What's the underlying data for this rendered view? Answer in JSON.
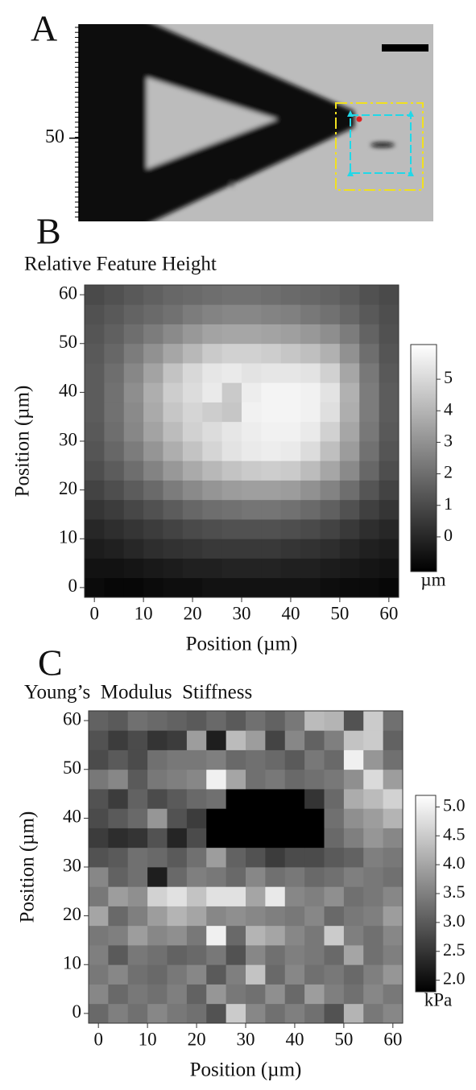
{
  "chart_data": [
    {
      "type": "image",
      "label": "A",
      "ylim": [
        23,
        87
      ],
      "yticks": [
        50
      ]
    },
    {
      "type": "heatmap",
      "label": "B",
      "title": "Relative Feature Height",
      "xlabel": "Position (µm)",
      "ylabel": "Position (µm)",
      "xlim": [
        -2,
        62
      ],
      "ylim": [
        -2,
        62
      ],
      "xticks": [
        0,
        10,
        20,
        30,
        40,
        50,
        60
      ],
      "yticks": [
        0,
        10,
        20,
        30,
        40,
        50,
        60
      ],
      "x": [
        0,
        4,
        8,
        12,
        16,
        20,
        24,
        28,
        32,
        36,
        40,
        44,
        48,
        52,
        56,
        60
      ],
      "y": [
        0,
        4,
        8,
        12,
        16,
        20,
        24,
        28,
        32,
        36,
        40,
        44,
        48,
        52,
        56,
        60
      ],
      "z": [
        [
          -0.8,
          -0.9,
          -0.9,
          -0.8,
          -0.7,
          -0.7,
          -0.6,
          -0.6,
          -0.6,
          -0.6,
          -0.6,
          -0.6,
          -0.7,
          -0.8,
          -0.8,
          -0.9
        ],
        [
          -0.6,
          -0.6,
          -0.5,
          -0.4,
          -0.3,
          -0.2,
          -0.2,
          -0.1,
          -0.1,
          -0.1,
          -0.2,
          -0.2,
          -0.3,
          -0.4,
          -0.5,
          -0.6
        ],
        [
          -0.3,
          -0.2,
          0.0,
          0.2,
          0.3,
          0.4,
          0.5,
          0.5,
          0.5,
          0.5,
          0.4,
          0.3,
          0.2,
          0.0,
          -0.2,
          -0.3
        ],
        [
          0.0,
          0.2,
          0.4,
          0.6,
          0.8,
          1.0,
          1.1,
          1.2,
          1.2,
          1.2,
          1.1,
          1.0,
          0.8,
          0.5,
          0.2,
          0.0
        ],
        [
          0.4,
          0.6,
          0.9,
          1.2,
          1.5,
          1.8,
          2.0,
          2.1,
          2.2,
          2.2,
          2.1,
          1.9,
          1.6,
          1.2,
          0.7,
          0.4
        ],
        [
          0.8,
          1.1,
          1.5,
          1.9,
          2.4,
          2.8,
          3.1,
          3.3,
          3.4,
          3.4,
          3.3,
          3.0,
          2.6,
          2.0,
          1.3,
          0.8
        ],
        [
          1.1,
          1.5,
          2.0,
          2.6,
          3.2,
          3.7,
          4.1,
          4.4,
          4.6,
          4.7,
          4.6,
          4.2,
          3.6,
          2.8,
          1.8,
          1.1
        ],
        [
          1.3,
          1.8,
          2.4,
          3.1,
          3.8,
          4.4,
          4.9,
          5.3,
          5.5,
          5.6,
          5.5,
          5.1,
          4.3,
          3.3,
          2.1,
          1.3
        ],
        [
          1.4,
          2.0,
          2.7,
          3.5,
          4.2,
          4.8,
          5.1,
          5.4,
          5.6,
          5.7,
          5.7,
          5.5,
          4.8,
          3.6,
          2.3,
          1.4
        ],
        [
          1.5,
          2.1,
          2.8,
          3.7,
          4.5,
          4.9,
          4.7,
          4.5,
          5.7,
          5.8,
          5.8,
          5.7,
          5.2,
          3.8,
          2.4,
          1.5
        ],
        [
          1.5,
          2.1,
          2.9,
          3.8,
          4.7,
          5.1,
          5.5,
          4.6,
          5.6,
          5.8,
          5.8,
          5.7,
          5.3,
          3.9,
          2.4,
          1.5
        ],
        [
          1.5,
          2.0,
          2.7,
          3.5,
          4.4,
          5.0,
          5.4,
          5.5,
          5.3,
          5.4,
          5.4,
          5.3,
          4.8,
          3.6,
          2.3,
          1.4
        ],
        [
          1.4,
          1.8,
          2.4,
          3.0,
          3.6,
          4.1,
          4.6,
          4.8,
          4.8,
          4.7,
          4.5,
          4.3,
          3.9,
          3.0,
          2.0,
          1.3
        ],
        [
          1.3,
          1.6,
          2.0,
          2.4,
          2.8,
          3.2,
          3.5,
          3.6,
          3.6,
          3.5,
          3.4,
          3.2,
          2.9,
          2.4,
          1.7,
          1.2
        ],
        [
          1.2,
          1.4,
          1.7,
          1.9,
          2.1,
          2.4,
          2.6,
          2.7,
          2.7,
          2.6,
          2.5,
          2.3,
          2.1,
          1.8,
          1.4,
          1.1
        ],
        [
          1.0,
          1.2,
          1.4,
          1.6,
          1.8,
          1.9,
          2.0,
          2.1,
          2.1,
          2.0,
          1.9,
          1.8,
          1.7,
          1.5,
          1.2,
          1.0
        ]
      ],
      "clim": [
        -1.1,
        6.1
      ],
      "cticks": [
        0,
        1,
        2,
        3,
        4,
        5
      ],
      "colorbar_label": "µm"
    },
    {
      "type": "heatmap",
      "label": "C",
      "title": "Young’s  Modulus  Stiffness",
      "xlabel": "Position (µm)",
      "ylabel": "Position (µm)",
      "xlim": [
        -2,
        62
      ],
      "ylim": [
        -2,
        62
      ],
      "xticks": [
        0,
        10,
        20,
        30,
        40,
        50,
        60
      ],
      "yticks": [
        0,
        10,
        20,
        30,
        40,
        50,
        60
      ],
      "x": [
        0,
        4,
        8,
        12,
        16,
        20,
        24,
        28,
        32,
        36,
        40,
        44,
        48,
        52,
        56,
        60
      ],
      "y": [
        0,
        4,
        8,
        12,
        16,
        20,
        24,
        28,
        32,
        36,
        40,
        44,
        48,
        52,
        56,
        60
      ],
      "z": [
        [
          3.2,
          3.5,
          3.3,
          3.6,
          3.4,
          3.3,
          2.9,
          4.5,
          3.6,
          3.3,
          3.5,
          3.3,
          2.9,
          4.2,
          3.4,
          3.6
        ],
        [
          3.6,
          3.2,
          3.4,
          3.3,
          3.5,
          3.1,
          3.8,
          3.4,
          3.3,
          3.7,
          3.2,
          3.9,
          3.5,
          3.3,
          3.6,
          3.4
        ],
        [
          3.4,
          3.6,
          3.3,
          3.2,
          3.4,
          3.6,
          3.0,
          3.5,
          4.4,
          3.2,
          3.6,
          3.3,
          3.4,
          3.2,
          3.5,
          3.8
        ],
        [
          3.5,
          3.0,
          3.4,
          3.3,
          3.1,
          3.2,
          3.4,
          2.9,
          3.6,
          3.3,
          3.5,
          3.4,
          3.2,
          4.0,
          3.3,
          3.5
        ],
        [
          3.4,
          3.5,
          3.9,
          3.6,
          3.7,
          3.4,
          5.0,
          3.2,
          4.2,
          4.0,
          3.6,
          3.4,
          4.5,
          3.5,
          3.3,
          3.6
        ],
        [
          4.0,
          3.2,
          3.5,
          3.9,
          4.2,
          4.0,
          3.6,
          3.7,
          3.6,
          3.5,
          3.4,
          3.6,
          3.2,
          3.4,
          3.5,
          3.9
        ],
        [
          3.4,
          3.9,
          3.7,
          4.6,
          4.8,
          4.4,
          4.8,
          4.8,
          4.0,
          4.9,
          3.6,
          3.5,
          3.7,
          3.3,
          3.4,
          3.6
        ],
        [
          3.6,
          3.1,
          3.3,
          2.2,
          3.2,
          3.5,
          3.4,
          3.2,
          3.6,
          3.3,
          3.4,
          3.2,
          3.3,
          3.5,
          3.4,
          3.3
        ],
        [
          2.9,
          3.0,
          3.3,
          3.2,
          3.0,
          3.3,
          3.9,
          3.1,
          2.9,
          2.6,
          2.8,
          2.8,
          3.0,
          3.1,
          3.5,
          3.4
        ],
        [
          2.6,
          2.4,
          2.5,
          2.9,
          2.3,
          2.8,
          1.8,
          1.8,
          1.8,
          1.8,
          1.8,
          1.8,
          3.2,
          3.5,
          3.8,
          3.6
        ],
        [
          2.8,
          3.0,
          3.2,
          3.8,
          2.9,
          2.6,
          1.8,
          1.8,
          1.8,
          1.8,
          1.8,
          1.8,
          3.3,
          3.7,
          3.9,
          4.2
        ],
        [
          2.9,
          2.6,
          3.1,
          2.8,
          3.0,
          3.2,
          3.3,
          1.8,
          1.8,
          1.8,
          1.8,
          2.5,
          3.2,
          4.1,
          4.3,
          4.6
        ],
        [
          3.4,
          3.6,
          3.0,
          3.4,
          3.5,
          3.6,
          5.0,
          4.0,
          3.3,
          3.4,
          3.2,
          3.3,
          3.4,
          3.7,
          4.7,
          3.9
        ],
        [
          2.8,
          3.0,
          2.8,
          3.3,
          3.4,
          3.4,
          3.5,
          3.2,
          3.3,
          3.2,
          3.0,
          3.4,
          3.2,
          5.0,
          3.8,
          3.3
        ],
        [
          2.9,
          2.6,
          2.8,
          2.5,
          2.6,
          3.9,
          2.2,
          4.3,
          3.9,
          2.7,
          3.6,
          3.1,
          3.5,
          4.4,
          4.5,
          3.1
        ],
        [
          3.1,
          3.0,
          3.3,
          3.2,
          3.1,
          3.0,
          3.2,
          3.0,
          3.3,
          3.1,
          3.4,
          4.3,
          4.2,
          2.9,
          4.5,
          3.3
        ]
      ],
      "clim": [
        1.8,
        5.2
      ],
      "cticks": [
        {
          "value": 2,
          "label": "2.0"
        },
        {
          "value": 2.5,
          "label": "2.5"
        },
        {
          "value": 3,
          "label": "3.0"
        },
        {
          "value": 3.5,
          "label": "3.5"
        },
        {
          "value": 4,
          "label": "4.0"
        },
        {
          "value": 4.5,
          "label": "4.5"
        },
        {
          "value": 5,
          "label": "5.0"
        }
      ],
      "colorbar_label": "kPa"
    }
  ]
}
